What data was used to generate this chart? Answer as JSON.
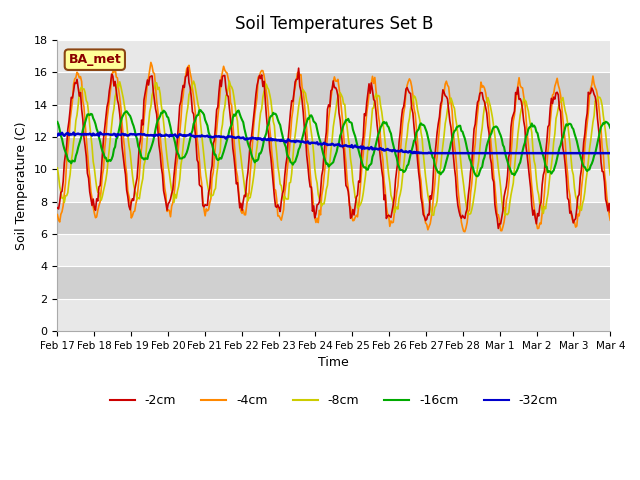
{
  "title": "Soil Temperatures Set B",
  "xlabel": "Time",
  "ylabel": "Soil Temperature (C)",
  "annotation": "BA_met",
  "ylim": [
    0,
    18
  ],
  "yticks": [
    0,
    2,
    4,
    6,
    8,
    10,
    12,
    14,
    16,
    18
  ],
  "x_labels": [
    "Feb 17",
    "Feb 18",
    "Feb 19",
    "Feb 20",
    "Feb 21",
    "Feb 22",
    "Feb 23",
    "Feb 24",
    "Feb 25",
    "Feb 26",
    "Feb 27",
    "Feb 28",
    "Mar 1",
    "Mar 2",
    "Mar 3",
    "Mar 4"
  ],
  "series_labels": [
    "-2cm",
    "-4cm",
    "-8cm",
    "-16cm",
    "-32cm"
  ],
  "series_colors": [
    "#cc0000",
    "#ff8800",
    "#cccc00",
    "#00aa00",
    "#0000cc"
  ],
  "background_color": "#ffffff",
  "plot_bg_bands": [
    "#e8e8e8",
    "#d0d0d0"
  ],
  "grid_color": "#ffffff",
  "line_widths": [
    1.2,
    1.2,
    1.2,
    1.5,
    1.8
  ],
  "num_points": 480,
  "xlim": [
    0,
    15
  ]
}
